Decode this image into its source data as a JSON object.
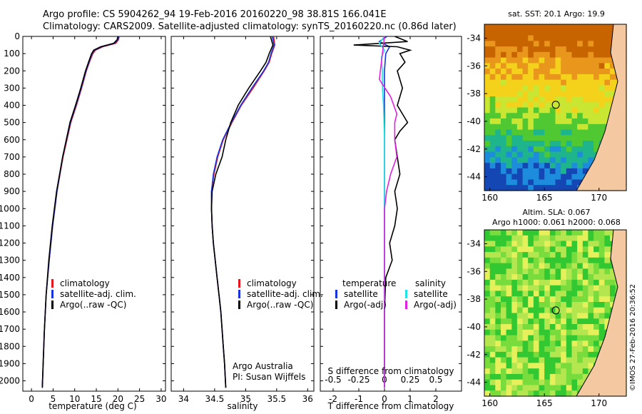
{
  "header": {
    "title_line1": "Argo profile: CS 5904262_94 19-Feb-2016 20160220_98 38.81S 166.041E",
    "title_line2": "Climatology: CARS2009. Satellite-adjusted climatology: synTS_20160220.nc (0.86d later)"
  },
  "colors": {
    "climatology": "#e8141e",
    "satellite": "#1633e0",
    "argo": "#000000",
    "salinity_satellite": "#22e4e4",
    "argo_adj_salinity": "#e021e0"
  },
  "chart_data": [
    {
      "type": "line",
      "name": "temperature-profile",
      "xlabel": "temperature (deg C)",
      "xlim": [
        -2,
        31
      ],
      "ylim": [
        2060,
        0
      ],
      "xticks": [
        0,
        5,
        10,
        15,
        20,
        25,
        30
      ],
      "yticks": [
        0,
        100,
        200,
        300,
        400,
        500,
        600,
        700,
        800,
        900,
        1000,
        1100,
        1200,
        1300,
        1400,
        1500,
        1600,
        1700,
        1800,
        1900,
        2000
      ],
      "legend": [
        "climatology",
        "satellite-adj. clim.",
        "Argo(..raw -QC)"
      ],
      "legend_placement": "lower-right",
      "series": [
        {
          "name": "climatology",
          "depth": [
            0,
            20,
            40,
            60,
            80,
            100,
            150,
            200,
            300,
            400,
            500,
            700,
            900,
            1100,
            1300,
            1500,
            1700,
            1900,
            2040
          ],
          "values": [
            20.3,
            20.1,
            19.5,
            16.5,
            14.8,
            14.2,
            13.4,
            12.7,
            11.6,
            10.4,
            9.1,
            7.3,
            5.9,
            4.9,
            4.1,
            3.4,
            3.0,
            2.7,
            2.5
          ]
        },
        {
          "name": "satellite-adj. clim.",
          "depth": [
            0,
            20,
            40,
            60,
            80,
            100,
            150,
            200,
            300,
            400,
            500,
            700,
            900,
            1100,
            1300,
            1500,
            1700,
            1900,
            2040
          ],
          "values": [
            20.2,
            20.0,
            19.2,
            16.2,
            14.6,
            14.0,
            13.3,
            12.6,
            11.5,
            10.3,
            9.0,
            7.2,
            5.9,
            4.9,
            4.1,
            3.4,
            3.0,
            2.7,
            2.5
          ]
        },
        {
          "name": "Argo(..raw -QC)",
          "depth": [
            0,
            20,
            40,
            60,
            80,
            100,
            150,
            200,
            300,
            400,
            500,
            700,
            900,
            1100,
            1300,
            1500,
            1700,
            1900,
            2040
          ],
          "values": [
            20.0,
            19.8,
            19.0,
            16.0,
            14.4,
            13.9,
            13.2,
            12.5,
            11.4,
            10.2,
            8.9,
            7.2,
            5.8,
            4.8,
            4.0,
            3.4,
            3.0,
            2.7,
            2.5
          ]
        }
      ]
    },
    {
      "type": "line",
      "name": "salinity-profile",
      "xlabel": "salinity",
      "xlim": [
        33.8,
        36.1
      ],
      "ylim": [
        2060,
        0
      ],
      "xticks": [
        34,
        34.5,
        35,
        35.5,
        36
      ],
      "legend": [
        "climatology",
        "satellite-adj. clim.",
        "Argo(..raw -QC)"
      ],
      "legend_placement": "lower-right",
      "annotation": [
        "Argo Australia",
        "PI: Susan Wijffels"
      ],
      "series": [
        {
          "name": "climatology",
          "depth": [
            0,
            50,
            100,
            150,
            200,
            300,
            400,
            500,
            600,
            700,
            800,
            900,
            1000,
            1100,
            1200,
            1300,
            1400,
            1500,
            1600,
            1700,
            1800,
            1900,
            2040
          ],
          "values": [
            35.45,
            35.47,
            35.42,
            35.38,
            35.3,
            35.12,
            34.93,
            34.78,
            34.64,
            34.55,
            34.49,
            34.45,
            34.45,
            34.46,
            34.48,
            34.51,
            34.54,
            34.57,
            34.6,
            34.62,
            34.64,
            34.66,
            34.68
          ]
        },
        {
          "name": "satellite-adj. clim.",
          "depth": [
            0,
            50,
            100,
            150,
            200,
            300,
            400,
            500,
            600,
            700,
            800,
            900,
            1000,
            1100,
            1200,
            1300,
            1400,
            1500,
            1600,
            1700,
            1800,
            1900,
            2040
          ],
          "values": [
            35.43,
            35.46,
            35.41,
            35.37,
            35.29,
            35.1,
            34.92,
            34.77,
            34.63,
            34.54,
            34.48,
            34.45,
            34.45,
            34.46,
            34.48,
            34.51,
            34.54,
            34.57,
            34.6,
            34.62,
            34.64,
            34.66,
            34.68
          ]
        },
        {
          "name": "Argo(..raw -QC)",
          "depth": [
            0,
            50,
            100,
            150,
            200,
            300,
            400,
            500,
            600,
            700,
            800,
            900,
            1000,
            1100,
            1200,
            1300,
            1400,
            1500,
            1600,
            1700,
            1800,
            1900,
            2040
          ],
          "values": [
            35.4,
            35.44,
            35.38,
            35.33,
            35.24,
            35.05,
            34.88,
            34.76,
            34.68,
            34.62,
            34.52,
            34.46,
            34.45,
            34.46,
            34.48,
            34.51,
            34.54,
            34.57,
            34.6,
            34.62,
            34.64,
            34.66,
            34.68
          ]
        }
      ]
    },
    {
      "type": "line",
      "name": "difference-profile",
      "xlabel": "T difference from climatology",
      "xlabel_top": "S difference from climatology",
      "xlim": [
        -2.5,
        3
      ],
      "ylim": [
        2060,
        0
      ],
      "xticks": [
        -2,
        -1,
        0,
        1,
        2
      ],
      "s_xticks": [
        "-0.5",
        "-0.25",
        "0",
        "0.25",
        "0.5"
      ],
      "legend_titles": [
        "temperature",
        "salinity"
      ],
      "legend": [
        "satellite",
        "Argo(-adj)",
        "satellite",
        "Argo(-adj)"
      ],
      "legend_placement": "lower-center",
      "series": [
        {
          "name": "temperature satellite",
          "depth": [
            0,
            30,
            60,
            100,
            200,
            300,
            400,
            600,
            800,
            1000,
            1200,
            1400,
            1600,
            1800,
            2040
          ],
          "values": [
            0.1,
            -0.2,
            0.2,
            0.05,
            0.0,
            0.0,
            0.0,
            0.0,
            0.0,
            0.0,
            0.0,
            0.0,
            0.0,
            0.0,
            0.0
          ]
        },
        {
          "name": "temperature Argo(-adj)",
          "depth": [
            0,
            30,
            50,
            60,
            80,
            100,
            150,
            200,
            300,
            400,
            500,
            550,
            600,
            700,
            800,
            900,
            1000,
            1100,
            1200,
            1300,
            1400,
            1600,
            1800,
            2040
          ],
          "values": [
            0.4,
            0.9,
            -1.2,
            0.5,
            1.0,
            0.6,
            0.8,
            0.5,
            0.7,
            0.5,
            0.9,
            0.6,
            0.4,
            0.5,
            0.6,
            0.4,
            0.5,
            0.4,
            0.2,
            0.3,
            0.05,
            0.0,
            0.0,
            0.0
          ]
        },
        {
          "name": "salinity satellite",
          "depth": [
            0,
            40,
            80,
            120,
            200,
            300,
            400,
            600,
            800,
            1000,
            1200,
            1400,
            1600,
            1800,
            2040
          ],
          "values": [
            0.0,
            -0.05,
            0.0,
            -0.03,
            -0.02,
            -0.02,
            -0.01,
            0.0,
            0.0,
            0.0,
            0.0,
            0.0,
            0.0,
            0.0,
            0.0
          ]
        },
        {
          "name": "salinity Argo(-adj)",
          "depth": [
            0,
            100,
            250,
            350,
            450,
            500,
            600,
            700,
            800,
            900,
            1000,
            1200,
            1400,
            1600,
            1800,
            2040
          ],
          "values": [
            0.0,
            -0.02,
            -0.05,
            0.06,
            0.12,
            0.1,
            0.1,
            0.12,
            0.06,
            0.02,
            0.0,
            0.0,
            0.0,
            0.0,
            0.0,
            0.0
          ]
        }
      ]
    }
  ],
  "maps": [
    {
      "title_lines": [
        "sat. SST: 20.1  Argo: 19.9"
      ],
      "yticks": [
        "-34",
        "-36",
        "-38",
        "-40",
        "-42",
        "-44"
      ],
      "xticks": [
        "160",
        "165",
        "170"
      ],
      "lat_range": [
        -45,
        -33
      ],
      "lon_range": [
        159.5,
        172.5
      ],
      "marker": {
        "lon": 166.04,
        "lat": -38.81
      }
    },
    {
      "title_lines": [
        "Altim. SLA: 0.067",
        "Argo h1000: 0.061 h2000: 0.068"
      ],
      "yticks": [
        "-34",
        "-36",
        "-38",
        "-40",
        "-42",
        "-44"
      ],
      "xticks": [
        "160",
        "165",
        "170"
      ],
      "lat_range": [
        -45,
        -33
      ],
      "lon_range": [
        159.5,
        172.5
      ],
      "marker": {
        "lon": 166.04,
        "lat": -38.81
      }
    }
  ],
  "credit": "©IMOS 27-Feb-2016 20:36:52"
}
